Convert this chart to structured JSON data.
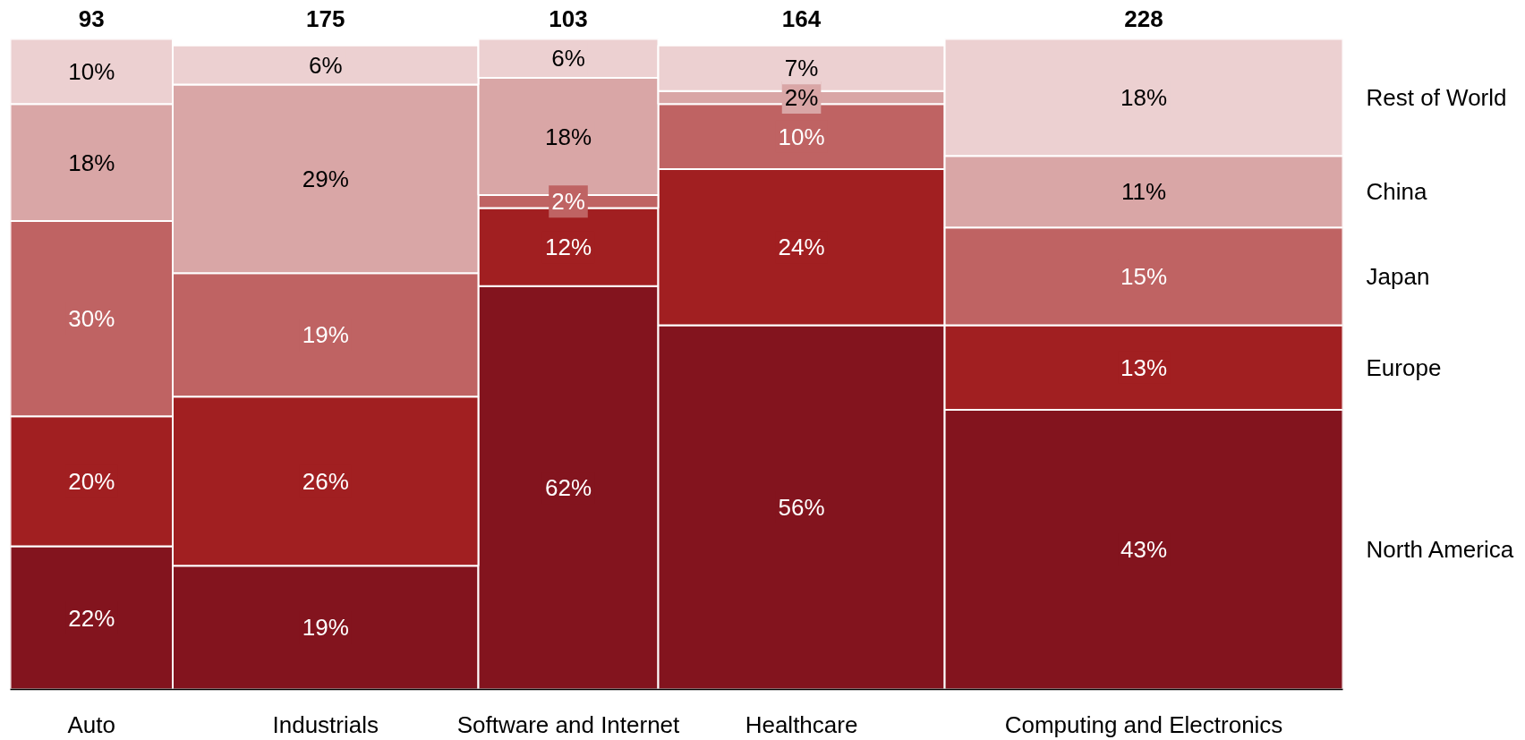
{
  "chart_data": {
    "type": "other",
    "data_labels": true,
    "categories": [
      "Auto",
      "Industrials",
      "Software and Internet",
      "Healthcare",
      "Computing and Electronics"
    ],
    "values": [
      93,
      175,
      103,
      164,
      228
    ],
    "series": [
      {
        "name": "North America",
        "color": "#83141e",
        "values": [
          22,
          19,
          62,
          56,
          43
        ],
        "value_labels": [
          "22%",
          "19%",
          "62%",
          "56%",
          "43%"
        ]
      },
      {
        "name": "Europe",
        "color": "#a11f21",
        "values": [
          20,
          26,
          12,
          24,
          13
        ],
        "value_labels": [
          "20%",
          "26%",
          "12%",
          "24%",
          "13%"
        ]
      },
      {
        "name": "Japan",
        "color": "#bf6363",
        "values": [
          30,
          19,
          2,
          10,
          15
        ],
        "value_labels": [
          "30%",
          "19%",
          "2%",
          "10%",
          "15%"
        ]
      },
      {
        "name": "China",
        "color": "#d9a6a6",
        "values": [
          18,
          29,
          18,
          2,
          11
        ],
        "value_labels": [
          "18%",
          "29%",
          "18%",
          "2%",
          "11%"
        ]
      },
      {
        "name": "Rest of World",
        "color": "#ecd0d1",
        "values": [
          10,
          6,
          6,
          7,
          18
        ],
        "value_labels": [
          "10%",
          "6%",
          "6%",
          "7%",
          "18%"
        ]
      }
    ]
  }
}
